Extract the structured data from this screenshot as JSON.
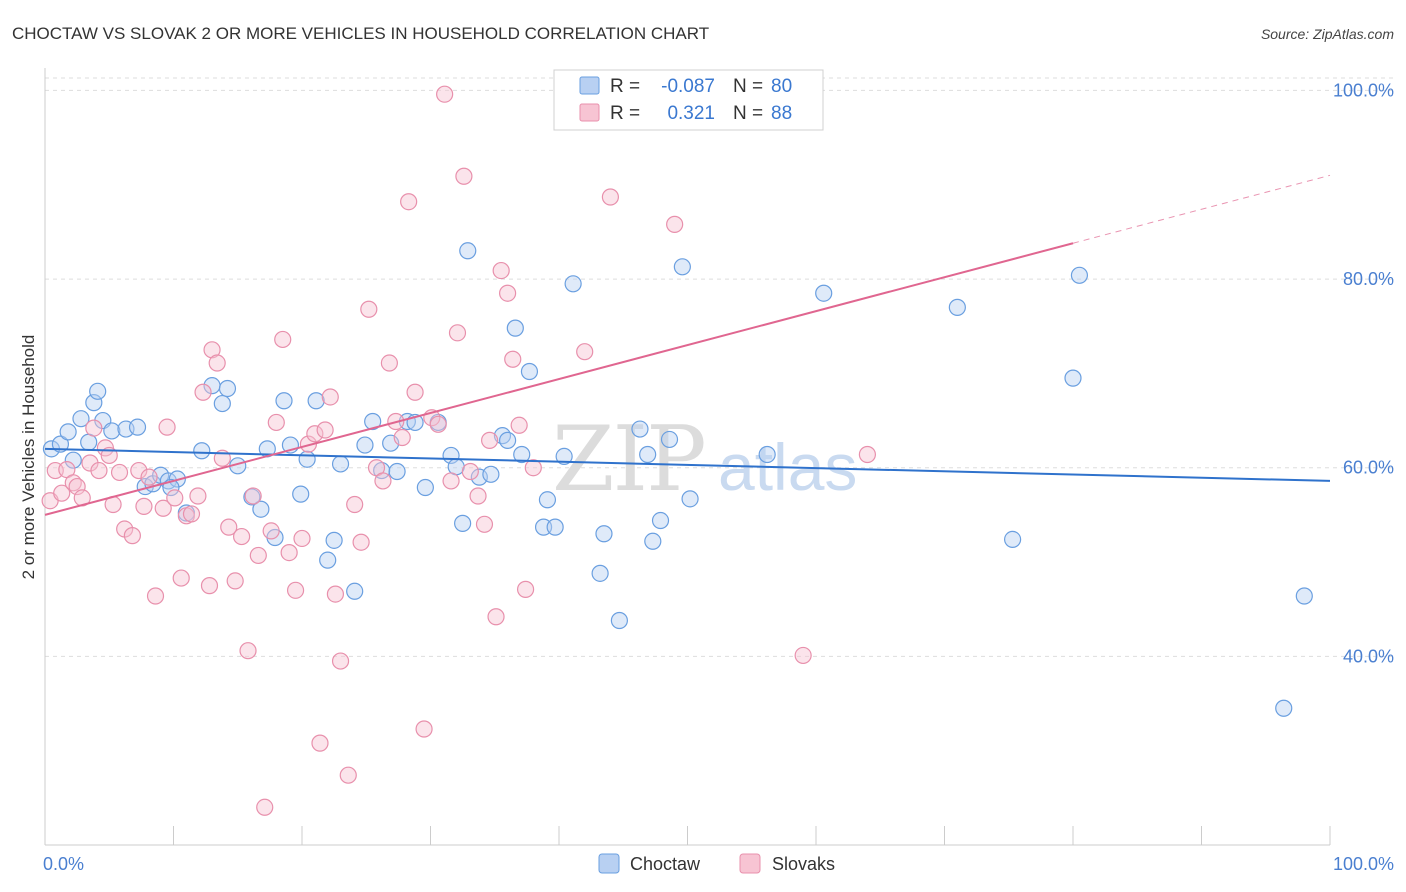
{
  "title": "CHOCTAW VS SLOVAK 2 OR MORE VEHICLES IN HOUSEHOLD CORRELATION CHART",
  "source": "Source: ZipAtlas.com",
  "watermark": {
    "zip": "ZIP",
    "atlas": "atlas"
  },
  "colors": {
    "choctaw_stroke": "#6a9fe0",
    "choctaw_fill": "#b8d0f2",
    "slovak_stroke": "#e890ac",
    "slovak_fill": "#f7c4d3",
    "choctaw_line": "#2f72cc",
    "slovak_line": "#e06690",
    "tick_text": "#4a7fd0",
    "grid": "#dddddd"
  },
  "legend_top": {
    "rows": [
      {
        "r_label": "R = ",
        "r_value": "-0.087",
        "n_label": "N = ",
        "n_value": "80"
      },
      {
        "r_label": "R = ",
        "r_value": "0.321",
        "n_label": "N = ",
        "n_value": "88"
      }
    ]
  },
  "legend_bottom": {
    "items": [
      {
        "label": "Choctaw"
      },
      {
        "label": "Slovaks"
      }
    ]
  },
  "chart_data": {
    "type": "scatter",
    "title": "CHOCTAW VS SLOVAK 2 OR MORE VEHICLES IN HOUSEHOLD CORRELATION CHART",
    "xlabel": "",
    "ylabel": "2 or more Vehicles in Household",
    "xlim": [
      0,
      100
    ],
    "ylim": [
      20,
      101
    ],
    "x_tick_labels": [
      "0.0%",
      "100.0%"
    ],
    "y_tick_values": [
      40,
      60,
      80,
      100
    ],
    "y_tick_labels": [
      "40.0%",
      "60.0%",
      "80.0%",
      "100.0%"
    ],
    "grid": true,
    "series": [
      {
        "name": "Choctaw",
        "trend": {
          "x0": 0,
          "y0": 62.0,
          "x1": 100,
          "y1": 58.6,
          "dashed_from": null
        },
        "points": [
          [
            0.5,
            62.0
          ],
          [
            1.2,
            62.5
          ],
          [
            1.8,
            63.8
          ],
          [
            2.2,
            60.8
          ],
          [
            2.8,
            65.2
          ],
          [
            3.4,
            62.7
          ],
          [
            3.8,
            66.9
          ],
          [
            4.1,
            68.1
          ],
          [
            4.5,
            65.0
          ],
          [
            5.2,
            63.9
          ],
          [
            6.3,
            64.1
          ],
          [
            7.2,
            64.3
          ],
          [
            7.8,
            58.0
          ],
          [
            8.4,
            58.3
          ],
          [
            9.0,
            59.2
          ],
          [
            9.6,
            58.6
          ],
          [
            10.3,
            58.8
          ],
          [
            11.0,
            55.2
          ],
          [
            9.8,
            57.9
          ],
          [
            12.2,
            61.8
          ],
          [
            13.0,
            68.7
          ],
          [
            13.8,
            66.8
          ],
          [
            14.2,
            68.4
          ],
          [
            15.0,
            60.2
          ],
          [
            16.1,
            56.9
          ],
          [
            16.8,
            55.6
          ],
          [
            17.3,
            62.0
          ],
          [
            17.9,
            52.6
          ],
          [
            18.6,
            67.1
          ],
          [
            19.1,
            62.4
          ],
          [
            19.9,
            57.2
          ],
          [
            20.4,
            60.9
          ],
          [
            21.1,
            67.1
          ],
          [
            22.0,
            50.2
          ],
          [
            22.5,
            52.3
          ],
          [
            23.0,
            60.4
          ],
          [
            24.1,
            46.9
          ],
          [
            24.9,
            62.4
          ],
          [
            25.5,
            64.9
          ],
          [
            26.2,
            59.7
          ],
          [
            26.9,
            62.6
          ],
          [
            27.4,
            59.6
          ],
          [
            28.2,
            64.9
          ],
          [
            28.8,
            64.8
          ],
          [
            29.6,
            57.9
          ],
          [
            30.6,
            64.8
          ],
          [
            31.6,
            61.3
          ],
          [
            32.0,
            60.1
          ],
          [
            32.5,
            54.1
          ],
          [
            32.9,
            83.0
          ],
          [
            33.8,
            59.0
          ],
          [
            34.7,
            59.3
          ],
          [
            35.6,
            63.4
          ],
          [
            36.0,
            62.9
          ],
          [
            36.6,
            74.8
          ],
          [
            37.1,
            61.4
          ],
          [
            37.7,
            70.2
          ],
          [
            38.8,
            53.7
          ],
          [
            39.1,
            56.6
          ],
          [
            39.7,
            53.7
          ],
          [
            40.4,
            61.2
          ],
          [
            41.1,
            79.5
          ],
          [
            43.2,
            48.8
          ],
          [
            43.5,
            53.0
          ],
          [
            44.7,
            43.8
          ],
          [
            46.3,
            64.1
          ],
          [
            46.9,
            61.4
          ],
          [
            47.3,
            52.2
          ],
          [
            47.9,
            54.4
          ],
          [
            48.6,
            63.0
          ],
          [
            49.6,
            81.3
          ],
          [
            50.2,
            56.7
          ],
          [
            56.2,
            61.4
          ],
          [
            60.6,
            78.5
          ],
          [
            71.0,
            77.0
          ],
          [
            75.3,
            52.4
          ],
          [
            80.0,
            69.5
          ],
          [
            80.5,
            80.4
          ],
          [
            98.0,
            46.4
          ],
          [
            96.4,
            34.5
          ]
        ]
      },
      {
        "name": "Slovaks",
        "trend": {
          "x0": 0,
          "y0": 55.0,
          "x1": 100,
          "y1": 91.0,
          "dashed_from": 80
        },
        "points": [
          [
            0.4,
            56.5
          ],
          [
            0.8,
            59.7
          ],
          [
            1.3,
            57.3
          ],
          [
            1.7,
            59.8
          ],
          [
            2.2,
            58.4
          ],
          [
            2.5,
            58.0
          ],
          [
            2.9,
            56.8
          ],
          [
            3.5,
            60.5
          ],
          [
            3.8,
            64.2
          ],
          [
            4.2,
            59.7
          ],
          [
            4.7,
            62.1
          ],
          [
            5.0,
            61.3
          ],
          [
            5.3,
            56.1
          ],
          [
            5.8,
            59.5
          ],
          [
            6.2,
            53.5
          ],
          [
            6.8,
            52.8
          ],
          [
            7.3,
            59.7
          ],
          [
            7.7,
            55.9
          ],
          [
            8.1,
            59.0
          ],
          [
            8.6,
            46.4
          ],
          [
            9.2,
            55.7
          ],
          [
            9.5,
            64.3
          ],
          [
            10.1,
            56.8
          ],
          [
            10.6,
            48.3
          ],
          [
            11.0,
            54.9
          ],
          [
            11.4,
            55.1
          ],
          [
            11.9,
            57.0
          ],
          [
            12.3,
            68.0
          ],
          [
            12.8,
            47.5
          ],
          [
            13.0,
            72.5
          ],
          [
            13.4,
            71.1
          ],
          [
            13.8,
            61.0
          ],
          [
            14.3,
            53.7
          ],
          [
            14.8,
            48.0
          ],
          [
            15.3,
            52.7
          ],
          [
            15.8,
            40.6
          ],
          [
            16.2,
            57.0
          ],
          [
            16.6,
            50.7
          ],
          [
            17.1,
            24.0
          ],
          [
            17.6,
            53.3
          ],
          [
            18.0,
            64.8
          ],
          [
            18.5,
            73.6
          ],
          [
            19.0,
            51.0
          ],
          [
            19.5,
            47.0
          ],
          [
            20.0,
            52.5
          ],
          [
            20.5,
            62.5
          ],
          [
            21.0,
            63.6
          ],
          [
            21.4,
            30.8
          ],
          [
            21.8,
            64.0
          ],
          [
            22.2,
            67.5
          ],
          [
            22.6,
            46.6
          ],
          [
            23.0,
            39.5
          ],
          [
            23.6,
            27.4
          ],
          [
            24.1,
            56.1
          ],
          [
            24.6,
            52.1
          ],
          [
            25.2,
            76.8
          ],
          [
            25.8,
            60.0
          ],
          [
            26.3,
            58.6
          ],
          [
            26.8,
            71.1
          ],
          [
            27.3,
            64.9
          ],
          [
            27.8,
            63.2
          ],
          [
            28.3,
            88.2
          ],
          [
            28.8,
            68.0
          ],
          [
            29.5,
            32.3
          ],
          [
            30.1,
            65.3
          ],
          [
            30.6,
            64.6
          ],
          [
            31.1,
            99.6
          ],
          [
            31.6,
            58.6
          ],
          [
            32.1,
            74.3
          ],
          [
            32.6,
            90.9
          ],
          [
            33.1,
            59.6
          ],
          [
            33.7,
            57.0
          ],
          [
            34.2,
            54.0
          ],
          [
            34.6,
            62.9
          ],
          [
            35.1,
            44.2
          ],
          [
            35.5,
            80.9
          ],
          [
            36.0,
            78.5
          ],
          [
            36.4,
            71.5
          ],
          [
            36.9,
            64.5
          ],
          [
            37.4,
            47.1
          ],
          [
            38.0,
            60.0
          ],
          [
            42.0,
            72.3
          ],
          [
            43.5,
            99.6
          ],
          [
            44.0,
            88.7
          ],
          [
            45.5,
            100.0
          ],
          [
            49.0,
            85.8
          ],
          [
            59.0,
            40.1
          ],
          [
            64.0,
            61.4
          ]
        ]
      }
    ]
  }
}
